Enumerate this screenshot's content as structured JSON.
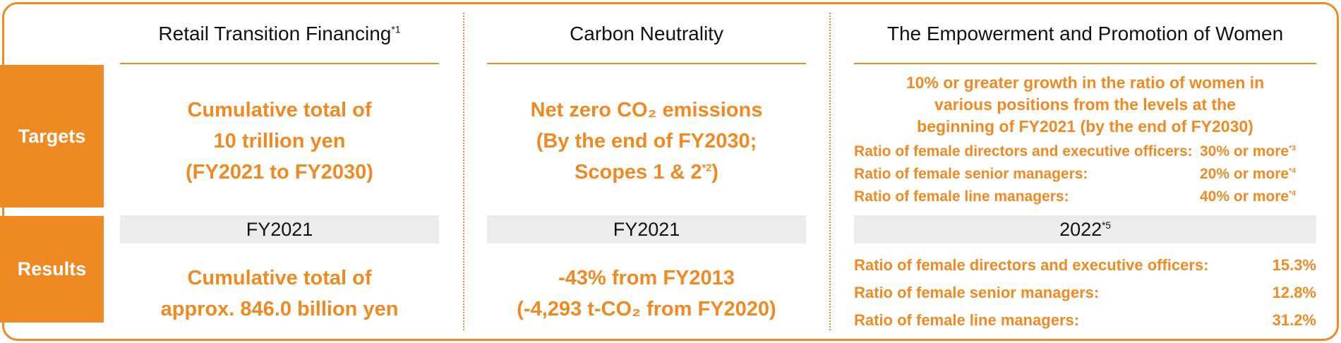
{
  "row_labels": {
    "targets": "Targets",
    "results": "Results"
  },
  "columns": [
    {
      "title": "Retail Transition Financing",
      "title_note": "*1",
      "target_lines": [
        "Cumulative total of",
        "10 trillion yen",
        "(FY2021 to FY2030)"
      ],
      "period": "FY2021",
      "result_lines": [
        "Cumulative total of",
        "approx. 846.0 billion yen"
      ]
    },
    {
      "title": "Carbon Neutrality",
      "target_lines": [
        "Net zero CO₂ emissions",
        "(By the end of FY2030;"
      ],
      "target_last": {
        "text": "Scopes 1 & 2",
        "note": "*2",
        "close": ")"
      },
      "period": "FY2021",
      "result_lines": [
        "-43% from FY2013",
        "(-4,293 t-CO₂ from FY2020)"
      ]
    },
    {
      "title": "The Empowerment and Promotion of Women",
      "target_lines": [
        "10% or greater growth in the ratio of women in",
        "various positions from the levels at the",
        "beginning of FY2021 (by the end of FY2030)"
      ],
      "target_rows": [
        {
          "label": "Ratio of female directors and executive officers:",
          "value": "30% or more",
          "note": "*3"
        },
        {
          "label": "Ratio of female senior managers:",
          "value": "20% or more",
          "note": "*4"
        },
        {
          "label": "Ratio of female line managers:",
          "value": "40% or more",
          "note": "*4"
        }
      ],
      "period": "2022",
      "period_note": "*5",
      "result_rows": [
        {
          "label": "Ratio of female directors and executive officers:",
          "value": "15.3%"
        },
        {
          "label": "Ratio of female senior managers:",
          "value": "12.8%"
        },
        {
          "label": "Ratio of female line managers:",
          "value": "31.2%"
        }
      ]
    }
  ]
}
